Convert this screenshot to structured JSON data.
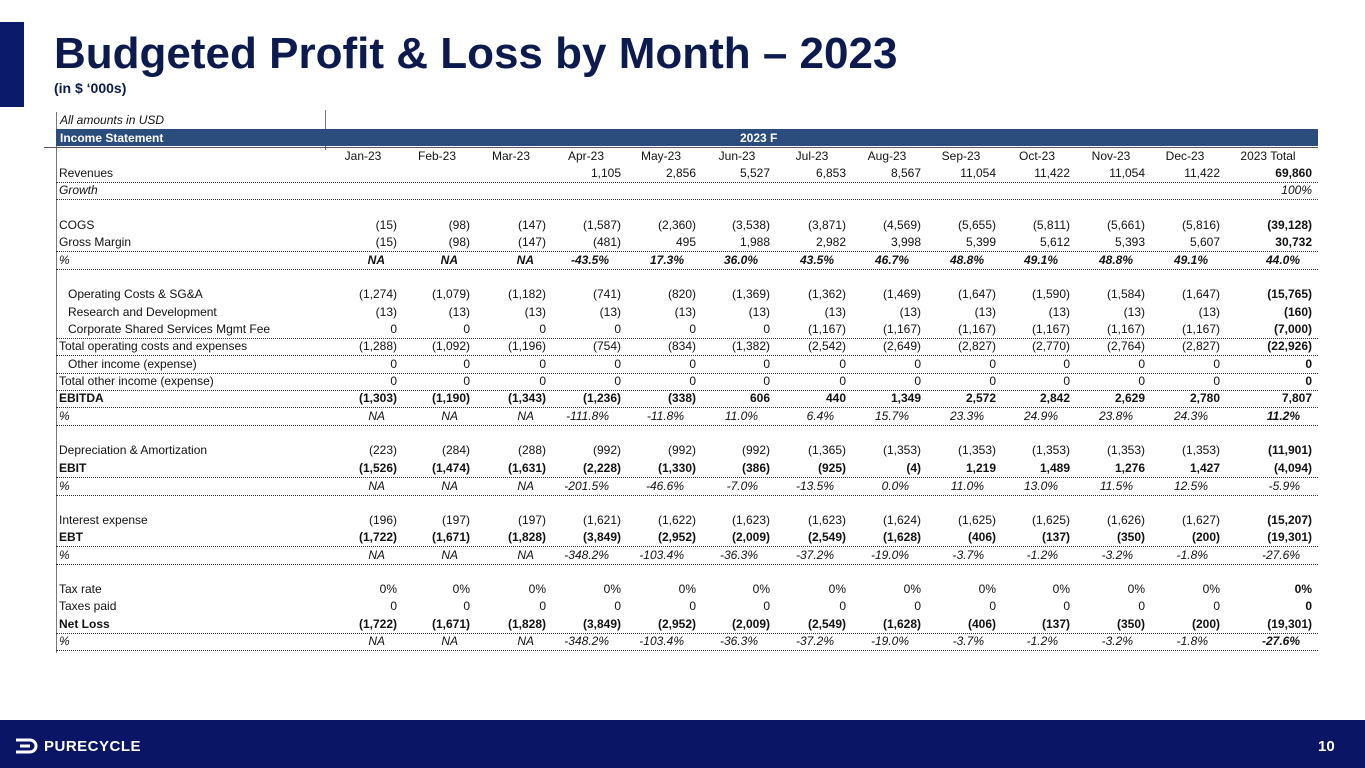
{
  "header": {
    "title": "Budgeted Profit & Loss by Month – 2023",
    "subtitle": "(in $ ‘000s)"
  },
  "table": {
    "note": "All amounts in USD",
    "header_label": "Income Statement",
    "period": "2023 F",
    "columns": [
      "Jan-23",
      "Feb-23",
      "Mar-23",
      "Apr-23",
      "May-23",
      "Jun-23",
      "Jul-23",
      "Aug-23",
      "Sep-23",
      "Oct-23",
      "Nov-23",
      "Dec-23",
      "2023 Total"
    ],
    "rows": [
      {
        "label": "Revenues",
        "cells": [
          null,
          null,
          null,
          "1,105",
          "2,856",
          "5,527",
          "6,853",
          "8,567",
          "11,054",
          "11,422",
          "11,054",
          "11,422",
          "69,860"
        ]
      },
      {
        "label": "Growth",
        "cells": [
          null,
          null,
          null,
          null,
          null,
          null,
          null,
          null,
          null,
          null,
          null,
          null,
          "100%"
        ]
      },
      {
        "label": "COGS",
        "cells": [
          "(15)",
          "(98)",
          "(147)",
          "(1,587)",
          "(2,360)",
          "(3,538)",
          "(3,871)",
          "(4,569)",
          "(5,655)",
          "(5,811)",
          "(5,661)",
          "(5,816)",
          "(39,128)"
        ]
      },
      {
        "label": "Gross Margin",
        "cells": [
          "(15)",
          "(98)",
          "(147)",
          "(481)",
          "495",
          "1,988",
          "2,982",
          "3,998",
          "5,399",
          "5,612",
          "5,393",
          "5,607",
          "30,732"
        ]
      },
      {
        "label": "%",
        "cells": [
          "NA",
          "NA",
          "NA",
          "-43.5%",
          "17.3%",
          "36.0%",
          "43.5%",
          "46.7%",
          "48.8%",
          "49.1%",
          "48.8%",
          "49.1%",
          "44.0%"
        ]
      },
      {
        "label": "Operating Costs & SG&A",
        "cells": [
          "(1,274)",
          "(1,079)",
          "(1,182)",
          "(741)",
          "(820)",
          "(1,369)",
          "(1,362)",
          "(1,469)",
          "(1,647)",
          "(1,590)",
          "(1,584)",
          "(1,647)",
          "(15,765)"
        ]
      },
      {
        "label": "Research and Development",
        "cells": [
          "(13)",
          "(13)",
          "(13)",
          "(13)",
          "(13)",
          "(13)",
          "(13)",
          "(13)",
          "(13)",
          "(13)",
          "(13)",
          "(13)",
          "(160)"
        ]
      },
      {
        "label": "Corporate Shared Services Mgmt Fee",
        "cells": [
          "0",
          "0",
          "0",
          "0",
          "0",
          "0",
          "(1,167)",
          "(1,167)",
          "(1,167)",
          "(1,167)",
          "(1,167)",
          "(1,167)",
          "(7,000)"
        ]
      },
      {
        "label": "Total operating costs and expenses",
        "cells": [
          "(1,288)",
          "(1,092)",
          "(1,196)",
          "(754)",
          "(834)",
          "(1,382)",
          "(2,542)",
          "(2,649)",
          "(2,827)",
          "(2,770)",
          "(2,764)",
          "(2,827)",
          "(22,926)"
        ]
      },
      {
        "label": "Other income (expense)",
        "cells": [
          "0",
          "0",
          "0",
          "0",
          "0",
          "0",
          "0",
          "0",
          "0",
          "0",
          "0",
          "0",
          "0"
        ]
      },
      {
        "label": "Total other income (expense)",
        "cells": [
          "0",
          "0",
          "0",
          "0",
          "0",
          "0",
          "0",
          "0",
          "0",
          "0",
          "0",
          "0",
          "0"
        ]
      },
      {
        "label": "EBITDA",
        "cells": [
          "(1,303)",
          "(1,190)",
          "(1,343)",
          "(1,236)",
          "(338)",
          "606",
          "440",
          "1,349",
          "2,572",
          "2,842",
          "2,629",
          "2,780",
          "7,807"
        ]
      },
      {
        "label": "%",
        "cells": [
          "NA",
          "NA",
          "NA",
          "-111.8%",
          "-11.8%",
          "11.0%",
          "6.4%",
          "15.7%",
          "23.3%",
          "24.9%",
          "23.8%",
          "24.3%",
          "11.2%"
        ]
      },
      {
        "label": "Depreciation & Amortization",
        "cells": [
          "(223)",
          "(284)",
          "(288)",
          "(992)",
          "(992)",
          "(992)",
          "(1,365)",
          "(1,353)",
          "(1,353)",
          "(1,353)",
          "(1,353)",
          "(1,353)",
          "(11,901)"
        ]
      },
      {
        "label": "EBIT",
        "cells": [
          "(1,526)",
          "(1,474)",
          "(1,631)",
          "(2,228)",
          "(1,330)",
          "(386)",
          "(925)",
          "(4)",
          "1,219",
          "1,489",
          "1,276",
          "1,427",
          "(4,094)"
        ]
      },
      {
        "label": "%",
        "cells": [
          "NA",
          "NA",
          "NA",
          "-201.5%",
          "-46.6%",
          "-7.0%",
          "-13.5%",
          "0.0%",
          "11.0%",
          "13.0%",
          "11.5%",
          "12.5%",
          "-5.9%"
        ]
      },
      {
        "label": "Interest expense",
        "cells": [
          "(196)",
          "(197)",
          "(197)",
          "(1,621)",
          "(1,622)",
          "(1,623)",
          "(1,623)",
          "(1,624)",
          "(1,625)",
          "(1,625)",
          "(1,626)",
          "(1,627)",
          "(15,207)"
        ]
      },
      {
        "label": "EBT",
        "cells": [
          "(1,722)",
          "(1,671)",
          "(1,828)",
          "(3,849)",
          "(2,952)",
          "(2,009)",
          "(2,549)",
          "(1,628)",
          "(406)",
          "(137)",
          "(350)",
          "(200)",
          "(19,301)"
        ]
      },
      {
        "label": "%",
        "cells": [
          "NA",
          "NA",
          "NA",
          "-348.2%",
          "-103.4%",
          "-36.3%",
          "-37.2%",
          "-19.0%",
          "-3.7%",
          "-1.2%",
          "-3.2%",
          "-1.8%",
          "-27.6%"
        ]
      },
      {
        "label": "Tax rate",
        "cells": [
          "0%",
          "0%",
          "0%",
          "0%",
          "0%",
          "0%",
          "0%",
          "0%",
          "0%",
          "0%",
          "0%",
          "0%",
          "0%"
        ]
      },
      {
        "label": "Taxes paid",
        "cells": [
          "0",
          "0",
          "0",
          "0",
          "0",
          "0",
          "0",
          "0",
          "0",
          "0",
          "0",
          "0",
          "0"
        ]
      },
      {
        "label": "Net Loss",
        "cells": [
          "(1,722)",
          "(1,671)",
          "(1,828)",
          "(3,849)",
          "(2,952)",
          "(2,009)",
          "(2,549)",
          "(1,628)",
          "(406)",
          "(137)",
          "(350)",
          "(200)",
          "(19,301)"
        ]
      },
      {
        "label": "%",
        "cells": [
          "NA",
          "NA",
          "NA",
          "-348.2%",
          "-103.4%",
          "-36.3%",
          "-37.2%",
          "-19.0%",
          "-3.7%",
          "-1.2%",
          "-3.2%",
          "-1.8%",
          "-27.6%"
        ]
      }
    ]
  },
  "footer": {
    "logo": "PURECYCLE",
    "page": "10"
  }
}
